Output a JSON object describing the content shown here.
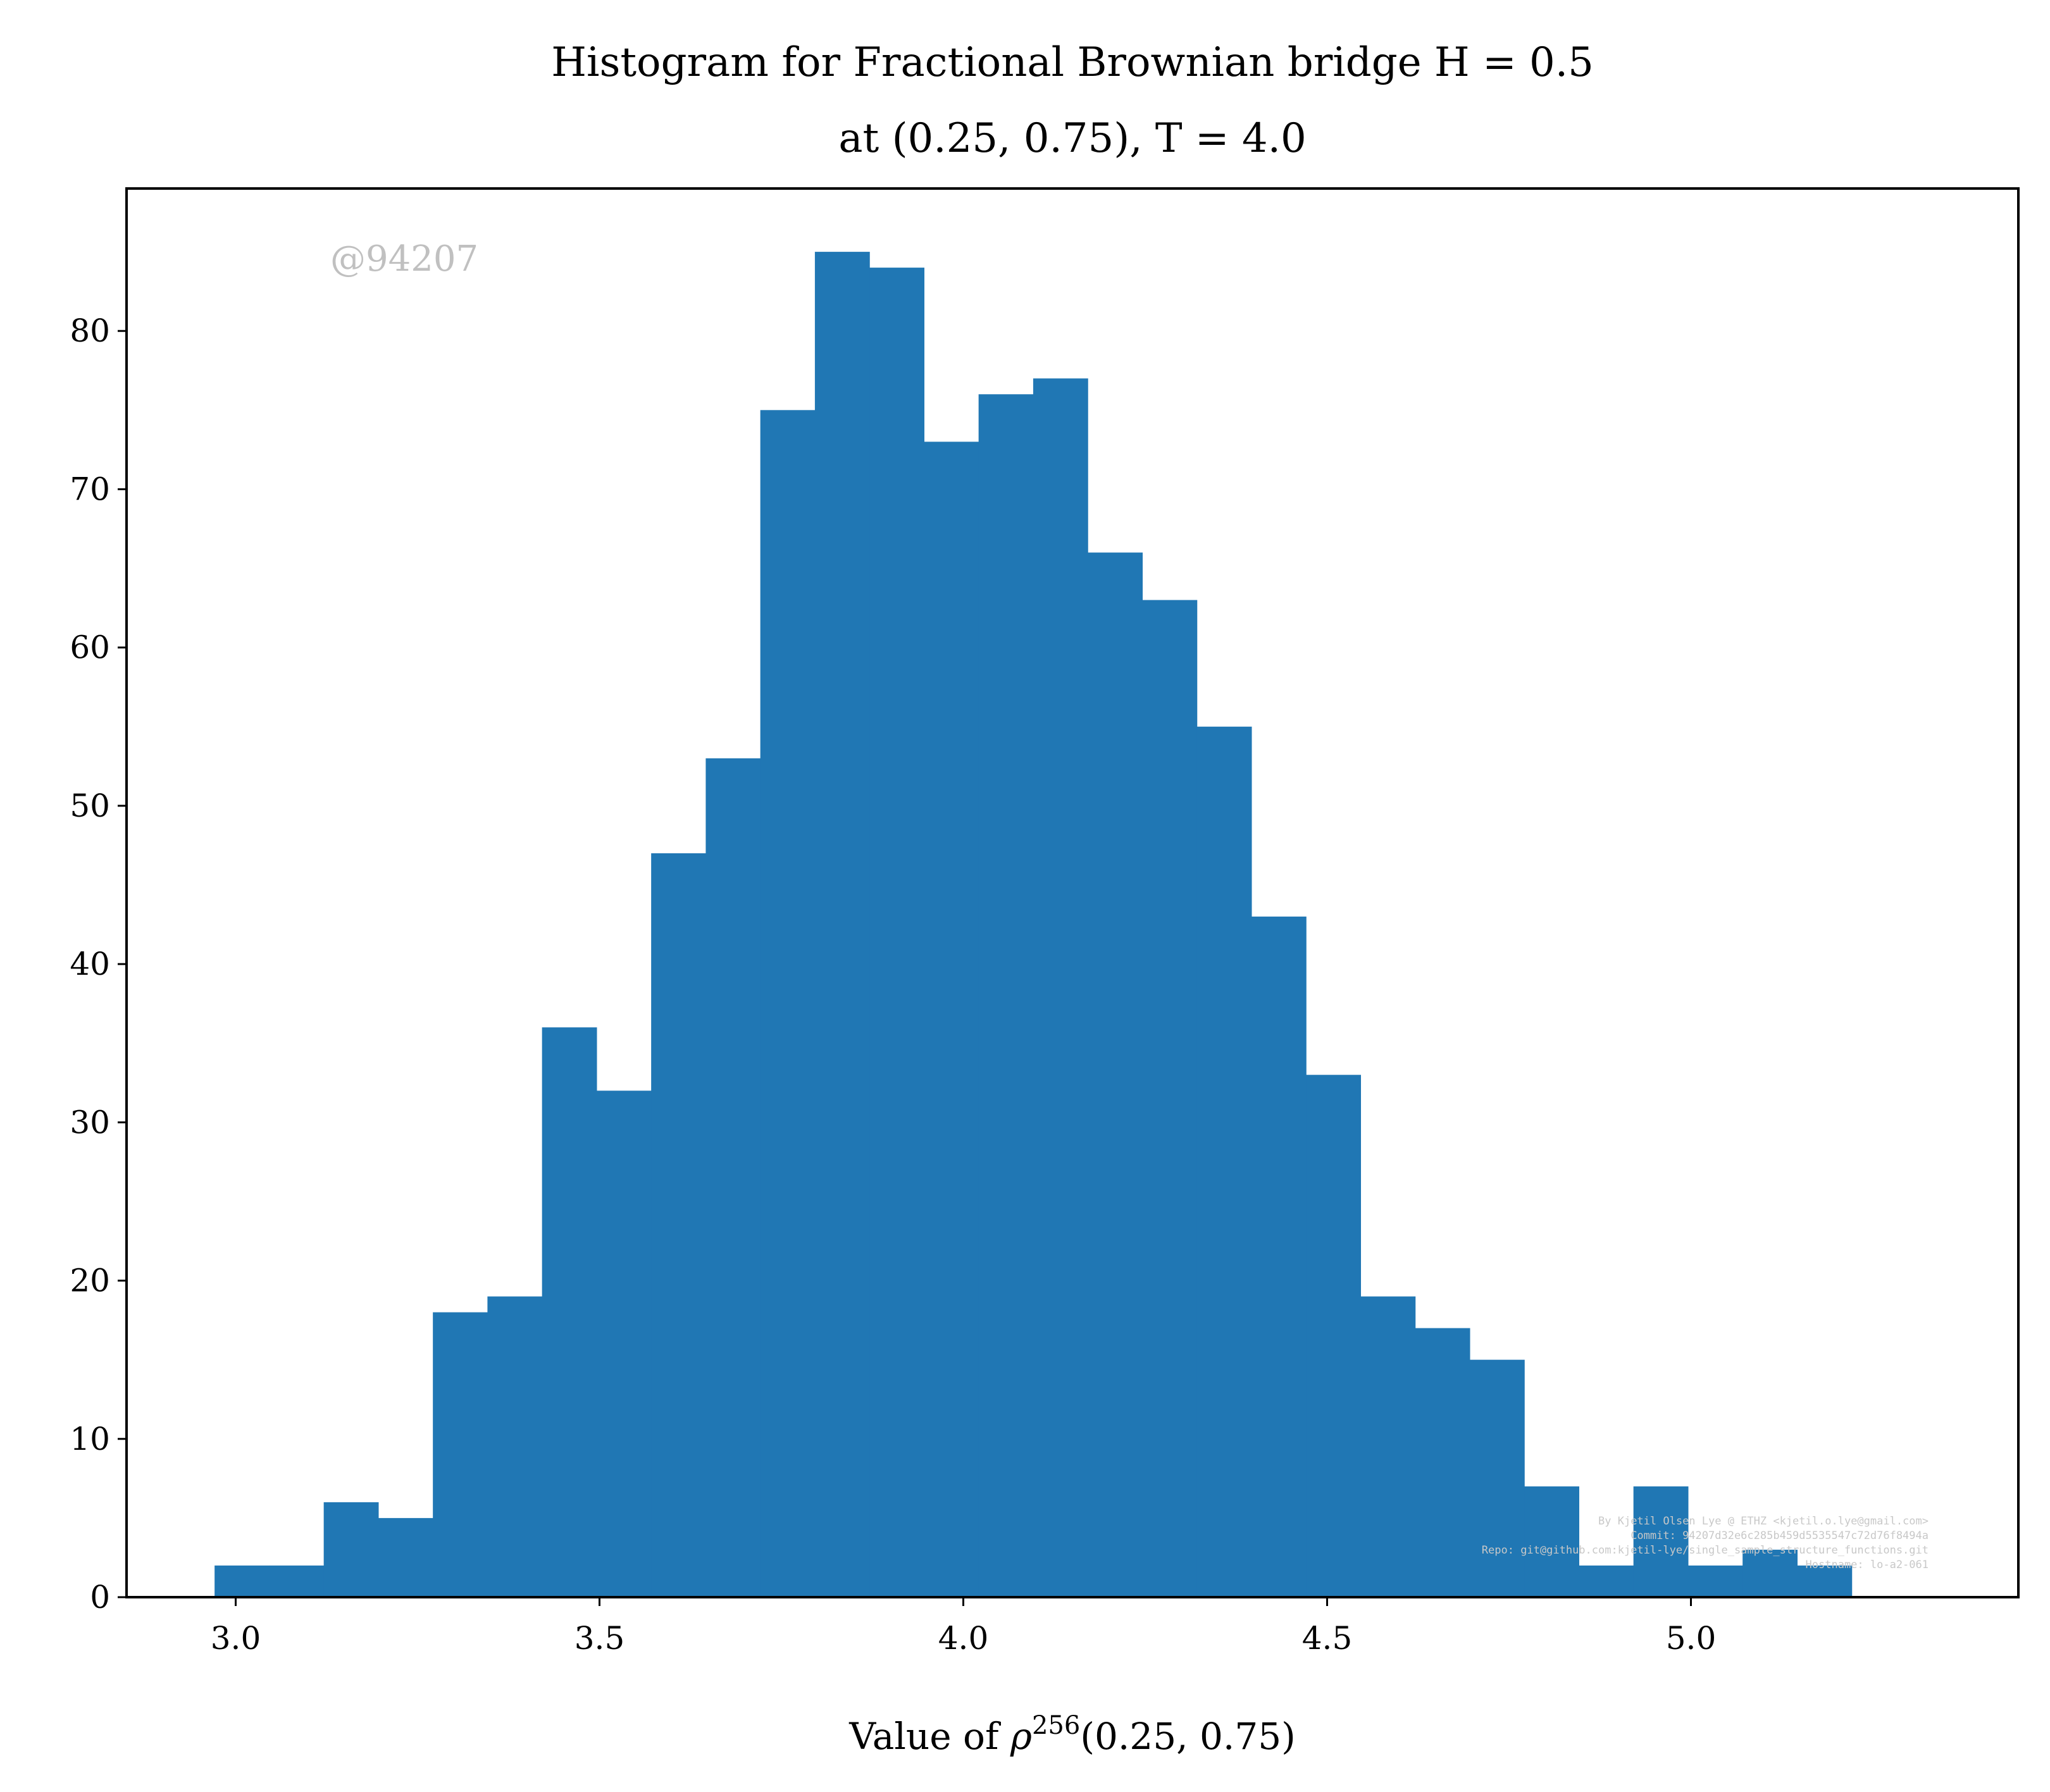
{
  "chart_data": {
    "type": "bar",
    "title": "Histogram for Fractional Brownian bridge H = 0.5",
    "subtitle": "at (0.25, 0.75), T = 4.0",
    "xlabel": "Value of ρ256(0.25, 0.75)",
    "xlabel_parts": {
      "pre": "Value of ",
      "symbol": "ρ",
      "superscript": "256",
      "post": "(0.25, 0.75)"
    },
    "ylabel": "",
    "xlim": [
      2.85,
      5.45
    ],
    "ylim": [
      0,
      89
    ],
    "x_ticks": [
      "3.0",
      "3.5",
      "4.0",
      "4.5",
      "5.0"
    ],
    "y_ticks": [
      "0",
      "10",
      "20",
      "30",
      "40",
      "50",
      "60",
      "70",
      "80"
    ],
    "bin_edges": [
      2.971,
      3.046,
      3.121,
      3.196,
      3.271,
      3.346,
      3.421,
      3.496,
      3.571,
      3.646,
      3.721,
      3.796,
      3.871,
      3.946,
      4.021,
      4.096,
      4.171,
      4.246,
      4.321,
      4.396,
      4.471,
      4.546,
      4.621,
      4.696,
      4.771,
      4.846,
      4.921,
      4.996,
      5.071,
      5.146,
      5.221
    ],
    "counts": [
      2,
      2,
      6,
      5,
      18,
      19,
      36,
      32,
      47,
      53,
      75,
      85,
      84,
      73,
      76,
      77,
      66,
      63,
      55,
      43,
      33,
      19,
      17,
      15,
      7,
      2,
      7,
      2,
      3,
      2
    ],
    "bar_color": "#2077b4",
    "grid": false,
    "legend": "none",
    "watermark": "@94207",
    "credits": [
      "By Kjetil Olsen Lye @ ETHZ <kjetil.o.lye@gmail.com>",
      "Commit: 94207d32e6c285b459d5535547c72d76f8494a",
      "Repo: git@github.com:kjetil-lye/single_sample_structure_functions.git",
      "Hostname: lo-a2-061"
    ]
  }
}
